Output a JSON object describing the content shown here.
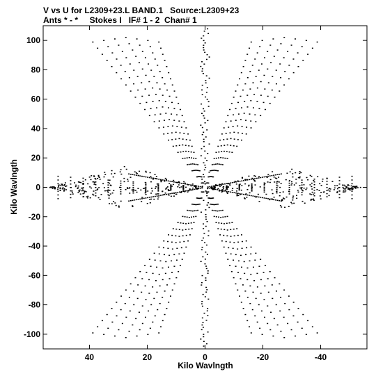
{
  "header": {
    "title_line1": "V vs U for L2309+23.L BAND.1   Source:L2309+23",
    "title_line2": "Ants * - *     Stokes I   IF# 1 - 2  Chan# 1"
  },
  "chart_data": {
    "type": "scatter",
    "title": "V vs U for L2309+23.L BAND.1   Source:L2309+23",
    "subtitle": "Ants * - *     Stokes I   IF# 1 - 2  Chan# 1",
    "xlabel": "Kilo Wavlngth",
    "ylabel": "Kilo Wavlngth",
    "xlim": [
      56,
      -56
    ],
    "ylim": [
      -110,
      110
    ],
    "x_inverted": true,
    "xticks": [
      40,
      20,
      0,
      -20,
      -40
    ],
    "yticks": [
      100,
      80,
      60,
      40,
      20,
      0,
      -20,
      -40,
      -60,
      -80,
      -100
    ],
    "grid": false,
    "legend": "none",
    "marker_color": "#000000",
    "arms": [
      {
        "name": "upper-left diagonal",
        "direction": [
          0.259,
          0.966
        ],
        "max_radius": 108,
        "min_radius": 1
      },
      {
        "name": "upper-right diagonal",
        "direction": [
          -0.259,
          0.966
        ],
        "max_radius": 108,
        "min_radius": 1
      },
      {
        "name": "lower-left diagonal",
        "direction": [
          0.259,
          -0.966
        ],
        "max_radius": 108,
        "min_radius": 1
      },
      {
        "name": "lower-right diagonal",
        "direction": [
          -0.259,
          -0.966
        ],
        "max_radius": 108,
        "min_radius": 1
      },
      {
        "name": "left horizontal",
        "direction": [
          1,
          0
        ],
        "max_radius": 53,
        "min_radius": 1
      },
      {
        "name": "right horizontal",
        "direction": [
          -1,
          0
        ],
        "max_radius": 53,
        "min_radius": 1
      }
    ],
    "vertical_fan": {
      "u_spread": 1.5,
      "v_max": 108
    },
    "horizontal_fan": {
      "u_max": 54,
      "v_spread": 15
    }
  }
}
